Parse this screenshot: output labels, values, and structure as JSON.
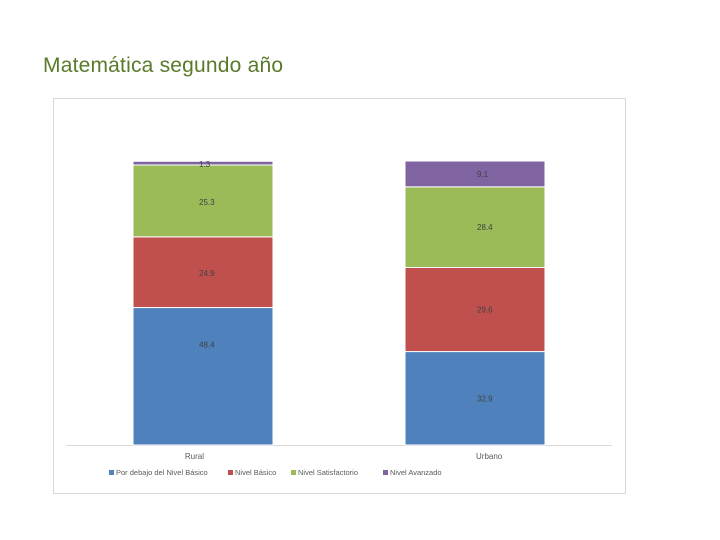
{
  "slide": {
    "title": "Matemática segundo año"
  },
  "chart_data": {
    "type": "bar",
    "stacked": true,
    "title": "",
    "categories": [
      "Rural",
      "Urbano"
    ],
    "series": [
      {
        "name": "Por debajo del Nivel Básico",
        "values": [
          48.4,
          32.9
        ],
        "labels": [
          "48.4",
          "32.9"
        ],
        "color": "#4f81bd"
      },
      {
        "name": "Nivel Básico",
        "values": [
          24.9,
          29.6
        ],
        "labels": [
          "24.9",
          "29.6"
        ],
        "color": "#c0504d"
      },
      {
        "name": "Nivel Satisfactorio",
        "values": [
          25.3,
          28.4
        ],
        "labels": [
          "25.3",
          "28.4"
        ],
        "color": "#9bbb59"
      },
      {
        "name": "Nivel Avanzado",
        "values": [
          1.3,
          9.1
        ],
        "labels": [
          "1.3",
          "9.1"
        ],
        "color": "#8064a2"
      }
    ],
    "xlabel": "",
    "ylabel": "",
    "ylim": [
      0,
      100
    ],
    "grid": false,
    "legend": "bottom"
  }
}
